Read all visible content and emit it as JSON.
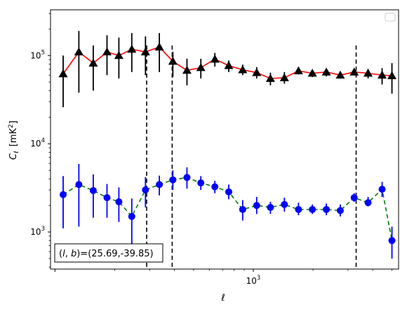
{
  "chart_data": {
    "type": "scatter",
    "xscale": "log",
    "yscale": "log",
    "xlim": [
      95,
      5400
    ],
    "ylim": [
      380,
      330000
    ],
    "xlabel": "ℓ",
    "ylabel_main": "C",
    "ylabel_sub": "ℓ",
    "ylabel_unit_pre": "[mK",
    "ylabel_unit_sup": "2",
    "ylabel_unit_post": "]",
    "x_tick_labels": [
      {
        "value": 1000,
        "base": "10",
        "exp": "3"
      }
    ],
    "y_tick_labels": [
      {
        "value": 1000,
        "base": "10",
        "exp": "3"
      },
      {
        "value": 10000,
        "base": "10",
        "exp": "4"
      },
      {
        "value": 100000,
        "base": "10",
        "exp": "5"
      }
    ],
    "vlines": [
      290,
      390,
      3300
    ],
    "annotation": "(l, b)=(25.69,-39.85)",
    "annotation_parts": {
      "prefix": "(",
      "l": "l",
      "comma": ", ",
      "b": "b",
      "suffix": ")=(25.69,-39.85)"
    },
    "legend": "empty box, top-right",
    "series": [
      {
        "color": "#ff0000",
        "marker": "triangle",
        "marker_color": "#000000",
        "errorbar_color": "#000000",
        "line_style": "solid",
        "x": [
          110,
          132,
          156,
          183,
          210,
          244,
          286,
          336,
          393,
          463,
          544,
          640,
          752,
          884,
          1040,
          1220,
          1435,
          1690,
          1985,
          2335,
          2745,
          3225,
          3790,
          4460,
          5000
        ],
        "y": [
          62000,
          110000,
          82000,
          110000,
          100000,
          118000,
          110000,
          125000,
          86000,
          68000,
          73000,
          91000,
          77000,
          69000,
          64000,
          55000,
          56000,
          67000,
          63000,
          65000,
          60000,
          65000,
          63000,
          60000,
          59000
        ],
        "lo": [
          26000,
          38000,
          40000,
          60000,
          55000,
          65000,
          60000,
          65000,
          57000,
          46000,
          55000,
          75000,
          65000,
          60000,
          55000,
          46000,
          48000,
          61000,
          57000,
          58000,
          55000,
          60000,
          55000,
          47000,
          37000
        ],
        "hi": [
          100000,
          190000,
          130000,
          170000,
          160000,
          180000,
          165000,
          180000,
          110000,
          92000,
          92000,
          107000,
          88000,
          79000,
          74000,
          64000,
          65000,
          73000,
          69000,
          71000,
          65000,
          70000,
          70000,
          72000,
          82000
        ]
      },
      {
        "color": "#008000",
        "marker": "circle",
        "marker_color": "#0000ff",
        "errorbar_color": "#0000ff",
        "line_style": "dashed",
        "x": [
          110,
          132,
          156,
          183,
          210,
          244,
          286,
          336,
          393,
          463,
          544,
          640,
          752,
          884,
          1040,
          1220,
          1435,
          1690,
          1985,
          2335,
          2745,
          3225,
          3790,
          4460,
          5000
        ],
        "y": [
          2650,
          3450,
          2950,
          2450,
          2200,
          1500,
          3000,
          3450,
          3900,
          4150,
          3600,
          3250,
          2850,
          1800,
          2000,
          1900,
          2050,
          1800,
          1800,
          1800,
          1750,
          2450,
          2150,
          3050,
          800
        ],
        "lo": [
          1100,
          1150,
          1450,
          1450,
          1300,
          700,
          1900,
          2600,
          3000,
          3100,
          3000,
          2750,
          2350,
          1350,
          1600,
          1600,
          1700,
          1550,
          1600,
          1550,
          1500,
          2200,
          1950,
          2500,
          500
        ],
        "hi": [
          4300,
          5900,
          4500,
          3500,
          3200,
          2400,
          4200,
          4350,
          5000,
          5400,
          4300,
          3800,
          3450,
          2300,
          2500,
          2200,
          2450,
          2150,
          2050,
          2100,
          2050,
          2750,
          2500,
          3700,
          1150
        ]
      }
    ]
  }
}
